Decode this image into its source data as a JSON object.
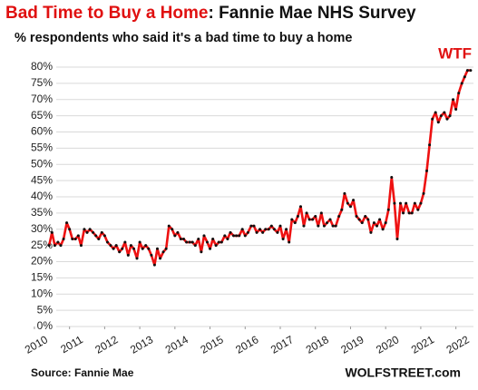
{
  "chart_data": {
    "type": "line",
    "title_highlight": "Bad Time to Buy a Home",
    "title_rest": ": Fannie Mae NHS Survey",
    "subtitle": "% respondents who said it's a bad time to buy a home",
    "annotation": "WTF",
    "source": "Source: Fannie Mae",
    "credit": "WOLFSTREET.com",
    "xlim": [
      2009.95,
      2022.5
    ],
    "xticks": [
      2010,
      2011,
      2012,
      2013,
      2014,
      2015,
      2016,
      2017,
      2018,
      2019,
      2020,
      2021,
      2022
    ],
    "ylim": [
      0,
      80
    ],
    "yticks": [
      {
        "value": 0,
        "label": "0%"
      },
      {
        "value": 5,
        "label": "5%"
      },
      {
        "value": 10,
        "label": "10%"
      },
      {
        "value": 15,
        "label": "15%"
      },
      {
        "value": 20,
        "label": "20%"
      },
      {
        "value": 25,
        "label": "25%"
      },
      {
        "value": 30,
        "label": "30%"
      },
      {
        "value": 35,
        "label": "35%"
      },
      {
        "value": 40,
        "label": "40%"
      },
      {
        "value": 45,
        "label": "45%"
      },
      {
        "value": 50,
        "label": "50%"
      },
      {
        "value": 55,
        "label": "55%"
      },
      {
        "value": 60,
        "label": "60%"
      },
      {
        "value": 65,
        "label": "65%"
      },
      {
        "value": 70,
        "label": "70%"
      },
      {
        "value": 75,
        "label": "75%"
      },
      {
        "value": 80,
        "label": "80%"
      }
    ],
    "grid": true,
    "color": "#ee1111",
    "marker_color": "#111111",
    "x": [
      2010.42,
      2010.5,
      2010.58,
      2010.67,
      2010.75,
      2010.83,
      2010.92,
      2011,
      2011.08,
      2011.17,
      2011.25,
      2011.33,
      2011.42,
      2011.5,
      2011.58,
      2011.67,
      2011.75,
      2011.83,
      2011.92,
      2012,
      2012.08,
      2012.17,
      2012.25,
      2012.33,
      2012.42,
      2012.5,
      2012.58,
      2012.67,
      2012.75,
      2012.83,
      2012.92,
      2013,
      2013.08,
      2013.17,
      2013.25,
      2013.33,
      2013.42,
      2013.5,
      2013.58,
      2013.67,
      2013.75,
      2013.83,
      2013.92,
      2014,
      2014.08,
      2014.17,
      2014.25,
      2014.33,
      2014.42,
      2014.5,
      2014.58,
      2014.67,
      2014.75,
      2014.83,
      2014.92,
      2015,
      2015.08,
      2015.17,
      2015.25,
      2015.33,
      2015.42,
      2015.5,
      2015.58,
      2015.67,
      2015.75,
      2015.83,
      2015.92,
      2016,
      2016.08,
      2016.17,
      2016.25,
      2016.33,
      2016.42,
      2016.5,
      2016.58,
      2016.67,
      2016.75,
      2016.83,
      2016.92,
      2017,
      2017.08,
      2017.17,
      2017.25,
      2017.33,
      2017.42,
      2017.5,
      2017.58,
      2017.67,
      2017.75,
      2017.83,
      2017.92,
      2018,
      2018.08,
      2018.17,
      2018.25,
      2018.33,
      2018.42,
      2018.5,
      2018.58,
      2018.67,
      2018.75,
      2018.83,
      2018.92,
      2019,
      2019.08,
      2019.17,
      2019.25,
      2019.33,
      2019.42,
      2019.5,
      2019.58,
      2019.67,
      2019.75,
      2019.83,
      2019.92,
      2020,
      2020.08,
      2020.17,
      2020.25,
      2020.33,
      2020.42,
      2020.5,
      2020.58,
      2020.67,
      2020.75,
      2020.83,
      2020.92,
      2021,
      2021.08,
      2021.17,
      2021.25,
      2021.33,
      2021.42,
      2021.5,
      2021.58,
      2021.67,
      2021.75,
      2021.83,
      2021.92,
      2022,
      2022.08,
      2022.17,
      2022.25,
      2022.33,
      2022.42
    ],
    "values": [
      25,
      29,
      25,
      26,
      25,
      27,
      32,
      30,
      27,
      27,
      28,
      25,
      30,
      29,
      30,
      29,
      28,
      27,
      29,
      28,
      26,
      25,
      24,
      25,
      23,
      24,
      26,
      22,
      25,
      24,
      21,
      26,
      24,
      25,
      24,
      22,
      19,
      24,
      21,
      23,
      24,
      31,
      30,
      28,
      29,
      27,
      27,
      26,
      26,
      26,
      25,
      27,
      23,
      28,
      26,
      24,
      27,
      25,
      26,
      26,
      28,
      27,
      29,
      28,
      28,
      28,
      30,
      28,
      29,
      31,
      31,
      29,
      30,
      29,
      30,
      30,
      31,
      30,
      29,
      31,
      27,
      30,
      26,
      33,
      32,
      34,
      37,
      31,
      35,
      33,
      33,
      34,
      31,
      35,
      31,
      32,
      33,
      31,
      31,
      34,
      36,
      41,
      38,
      37,
      39,
      34,
      33,
      32,
      34,
      33,
      29,
      32,
      31,
      33,
      30,
      32,
      36,
      46,
      38,
      27,
      38,
      35,
      38,
      35,
      35,
      38,
      36,
      38,
      41,
      48,
      56,
      64,
      66,
      63,
      65,
      66,
      64,
      65,
      70,
      67,
      72,
      75,
      77,
      79,
      79
    ]
  }
}
